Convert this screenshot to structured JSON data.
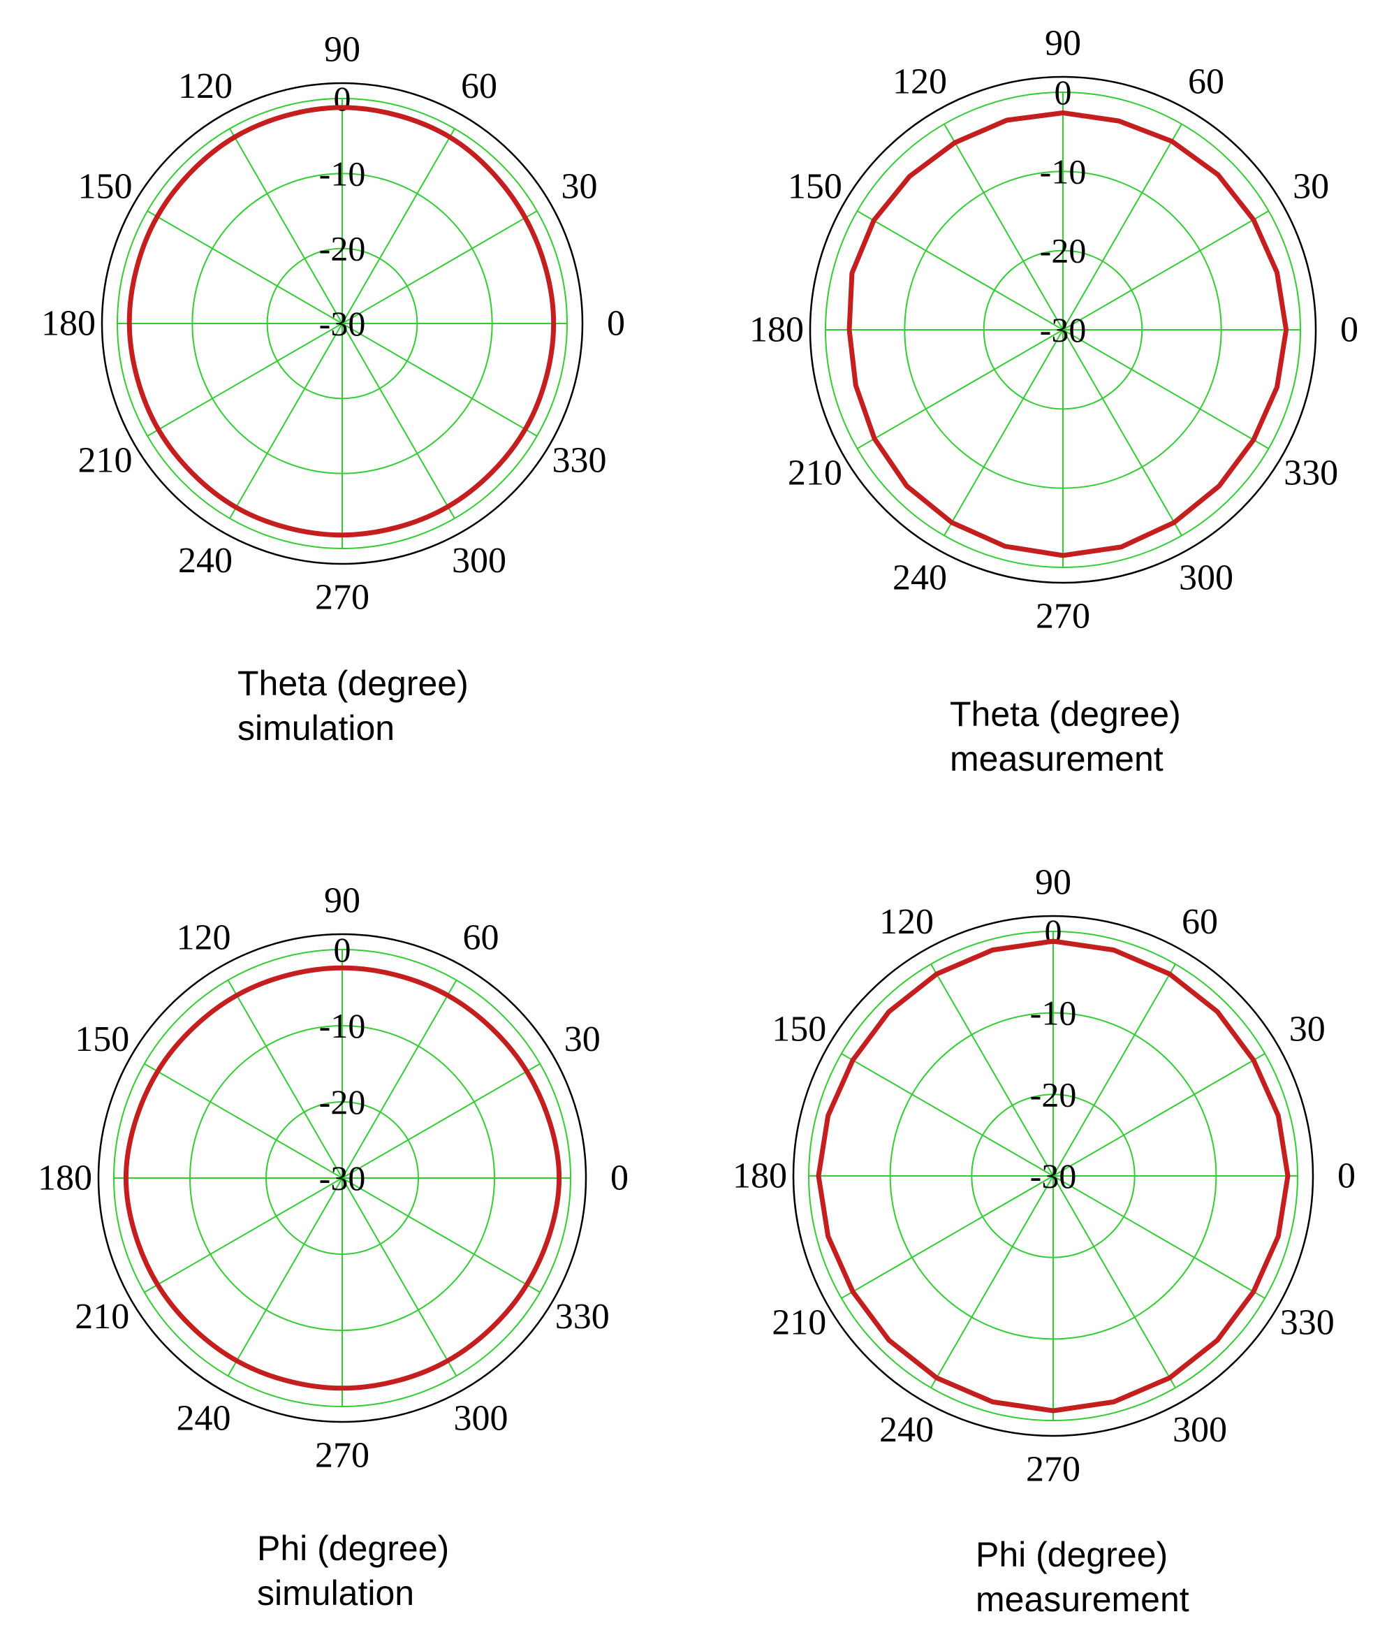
{
  "chart_data": [
    {
      "type": "polar",
      "title": "",
      "axis_label": "Theta (degree)",
      "caption": "simulation",
      "angle_ticks": [
        "0",
        "30",
        "60",
        "90",
        "120",
        "150",
        "180",
        "210",
        "240",
        "270",
        "300",
        "330"
      ],
      "radial_ticks": [
        "0",
        "-10",
        "-20",
        "-30"
      ],
      "r_range": [
        -30,
        0
      ],
      "series": [
        {
          "color": "#c41e1e",
          "theta_deg": [
            0,
            30,
            60,
            90,
            120,
            150,
            180,
            210,
            240,
            270,
            300,
            330
          ],
          "r": [
            -1.8,
            -1.8,
            -1.3,
            -1.2,
            -1.3,
            -1.5,
            -1.6,
            -1.7,
            -1.7,
            -1.8,
            -1.8,
            -1.8
          ]
        }
      ]
    },
    {
      "type": "polar",
      "title": "",
      "axis_label": "Theta (degree)",
      "caption": "measurement",
      "angle_ticks": [
        "0",
        "30",
        "60",
        "90",
        "120",
        "150",
        "180",
        "210",
        "240",
        "270",
        "300",
        "330"
      ],
      "radial_ticks": [
        "0",
        "-10",
        "-20",
        "-30"
      ],
      "r_range": [
        -30,
        0
      ],
      "series": [
        {
          "color": "#c41e1e",
          "theta_deg": [
            0,
            15,
            30,
            45,
            60,
            75,
            90,
            105,
            120,
            135,
            150,
            165,
            180,
            195,
            210,
            225,
            240,
            255,
            270,
            285,
            300,
            315,
            330,
            345
          ],
          "r": [
            -1.8,
            -2.0,
            -2.2,
            -2.3,
            -2.5,
            -2.7,
            -2.6,
            -2.6,
            -2.7,
            -2.6,
            -2.4,
            -2.4,
            -3.0,
            -2.9,
            -2.5,
            -2.1,
            -1.9,
            -1.7,
            -1.5,
            -1.6,
            -1.9,
            -2.1,
            -2.2,
            -2.0
          ]
        }
      ]
    },
    {
      "type": "polar",
      "title": "",
      "axis_label": "Phi (degree)",
      "caption": "simulation",
      "angle_ticks": [
        "0",
        "30",
        "60",
        "90",
        "120",
        "150",
        "180",
        "210",
        "240",
        "270",
        "300",
        "330"
      ],
      "radial_ticks": [
        "0",
        "-10",
        "-20",
        "-30"
      ],
      "r_range": [
        -30,
        0
      ],
      "series": [
        {
          "color": "#c41e1e",
          "theta_deg": [
            0,
            30,
            60,
            90,
            120,
            150,
            180,
            210,
            240,
            270,
            300,
            330
          ],
          "r": [
            -1.5,
            -2.0,
            -2.3,
            -2.4,
            -2.3,
            -2.0,
            -1.6,
            -2.0,
            -2.3,
            -2.4,
            -2.3,
            -2.0
          ]
        }
      ]
    },
    {
      "type": "polar",
      "title": "",
      "axis_label": "Phi (degree)",
      "caption": "measurement",
      "angle_ticks": [
        "0",
        "30",
        "60",
        "90",
        "120",
        "150",
        "180",
        "210",
        "240",
        "270",
        "300",
        "330"
      ],
      "radial_ticks": [
        "0",
        "-10",
        "-20",
        "-30"
      ],
      "r_range": [
        -30,
        0
      ],
      "series": [
        {
          "color": "#c41e1e",
          "theta_deg": [
            0,
            15,
            30,
            45,
            60,
            75,
            90,
            105,
            120,
            135,
            150,
            165,
            180,
            195,
            210,
            225,
            240,
            255,
            270,
            285,
            300,
            315,
            330,
            345
          ],
          "r": [
            -1.2,
            -1.4,
            -1.6,
            -1.5,
            -1.4,
            -1.3,
            -1.2,
            -1.3,
            -1.4,
            -1.5,
            -1.6,
            -1.4,
            -1.2,
            -1.4,
            -1.6,
            -1.5,
            -1.4,
            -1.3,
            -1.2,
            -1.3,
            -1.4,
            -1.5,
            -1.6,
            -1.4
          ]
        }
      ]
    }
  ],
  "colors": {
    "grid": "#33cc33",
    "trace": "#c41e1e",
    "outer_circle": "#000000"
  }
}
